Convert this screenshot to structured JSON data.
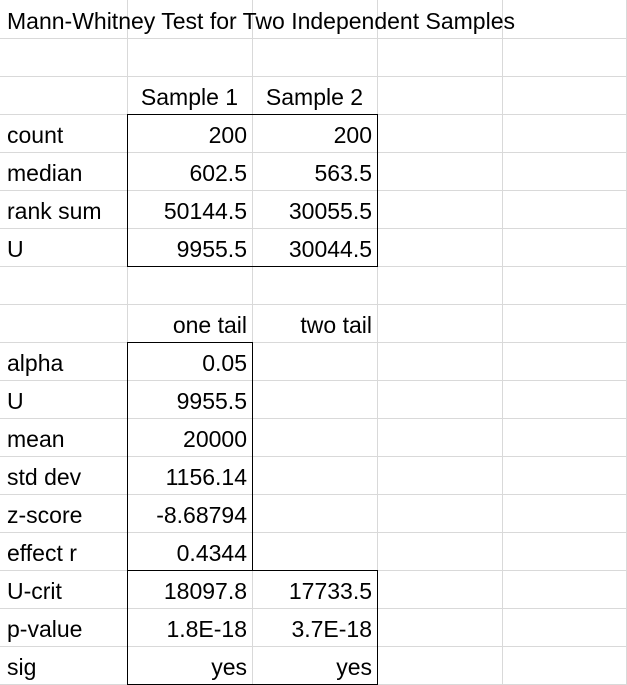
{
  "title": "Mann-Whitney Test for Two Independent Samples",
  "sample_headers": {
    "sample1": "Sample 1",
    "sample2": "Sample 2"
  },
  "sample_rows": [
    {
      "label": "count",
      "s1": "200",
      "s2": "200"
    },
    {
      "label": "median",
      "s1": "602.5",
      "s2": "563.5"
    },
    {
      "label": "rank sum",
      "s1": "50144.5",
      "s2": "30055.5"
    },
    {
      "label": "U",
      "s1": "9955.5",
      "s2": "30044.5"
    }
  ],
  "tail_headers": {
    "one": "one tail",
    "two": "two tail"
  },
  "stat_rows": [
    {
      "label": "alpha",
      "one": "0.05",
      "two": ""
    },
    {
      "label": "U",
      "one": "9955.5",
      "two": ""
    },
    {
      "label": "mean",
      "one": "20000",
      "two": ""
    },
    {
      "label": "std dev",
      "one": "1156.14",
      "two": ""
    },
    {
      "label": "z-score",
      "one": "-8.68794",
      "two": ""
    },
    {
      "label": "effect r",
      "one": "0.4344",
      "two": ""
    },
    {
      "label": "U-crit",
      "one": "18097.8",
      "two": "17733.5"
    },
    {
      "label": "p-value",
      "one": "1.8E-18",
      "two": "3.7E-18"
    },
    {
      "label": "sig",
      "one": "yes",
      "two": "yes"
    }
  ]
}
